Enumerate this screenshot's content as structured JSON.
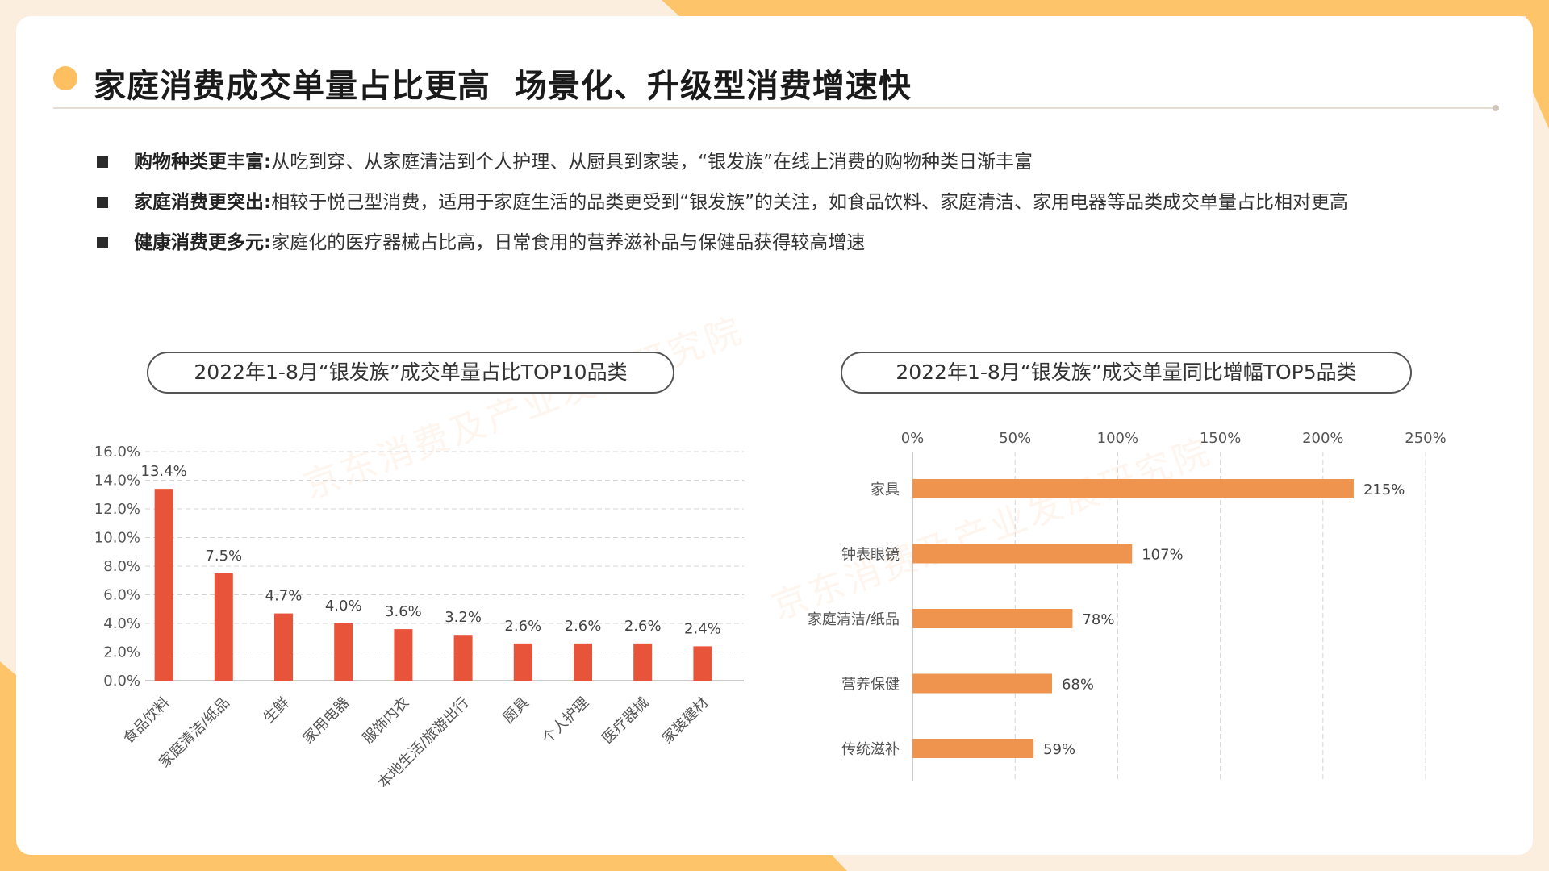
{
  "page": {
    "title": "家庭消费成交单量占比更高  场景化、升级型消费增速快",
    "watermark": "京东消费及产业发展研究院"
  },
  "bullets": [
    {
      "title": "购物种类更丰富:",
      "text": "从吃到穿、从家庭清洁到个人护理、从厨具到家装，“银发族”在线上消费的购物种类日渐丰富"
    },
    {
      "title": "家庭消费更突出:",
      "text": "相较于悦己型消费，适用于家庭生活的品类更受到“银发族”的关注，如食品饮料、家庭清洁、家用电器等品类成交单量占比相对更高"
    },
    {
      "title": "健康消费更多元:",
      "text": "家庭化的医疗器械占比高，日常食用的营养滋补品与保健品获得较高增速"
    }
  ],
  "colors": {
    "accent": "#fdbf5f",
    "bar_left": "#e8543a",
    "bar_right": "#ef944e"
  },
  "chart_data": [
    {
      "type": "bar",
      "title": "2022年1-8月“银发族”成交单量占比TOP10品类",
      "categories": [
        "食品饮料",
        "家庭清洁/纸品",
        "生鲜",
        "家用电器",
        "服饰内衣",
        "本地生活/旅游出行",
        "厨具",
        "个人护理",
        "医疗器械",
        "家装建材"
      ],
      "values": [
        13.4,
        7.5,
        4.7,
        4.0,
        3.6,
        3.2,
        2.6,
        2.6,
        2.6,
        2.4
      ],
      "value_labels": [
        "13.4%",
        "7.5%",
        "4.7%",
        "4.0%",
        "3.6%",
        "3.2%",
        "2.6%",
        "2.6%",
        "2.6%",
        "2.4%"
      ],
      "yticks": [
        "0.0%",
        "2.0%",
        "4.0%",
        "6.0%",
        "8.0%",
        "10.0%",
        "12.0%",
        "14.0%",
        "16.0%"
      ],
      "ylim": [
        0,
        16
      ],
      "grid": true
    },
    {
      "type": "bar",
      "orientation": "horizontal",
      "title": "2022年1-8月“银发族”成交单量同比增幅TOP5品类",
      "categories": [
        "家具",
        "钟表眼镜",
        "家庭清洁/纸品",
        "营养保健",
        "传统滋补"
      ],
      "values": [
        215,
        107,
        78,
        68,
        59
      ],
      "value_labels": [
        "215%",
        "107%",
        "78%",
        "68%",
        "59%"
      ],
      "xticks": [
        "0%",
        "50%",
        "100%",
        "150%",
        "200%",
        "250%"
      ],
      "xlim": [
        0,
        250
      ],
      "grid": true
    }
  ]
}
